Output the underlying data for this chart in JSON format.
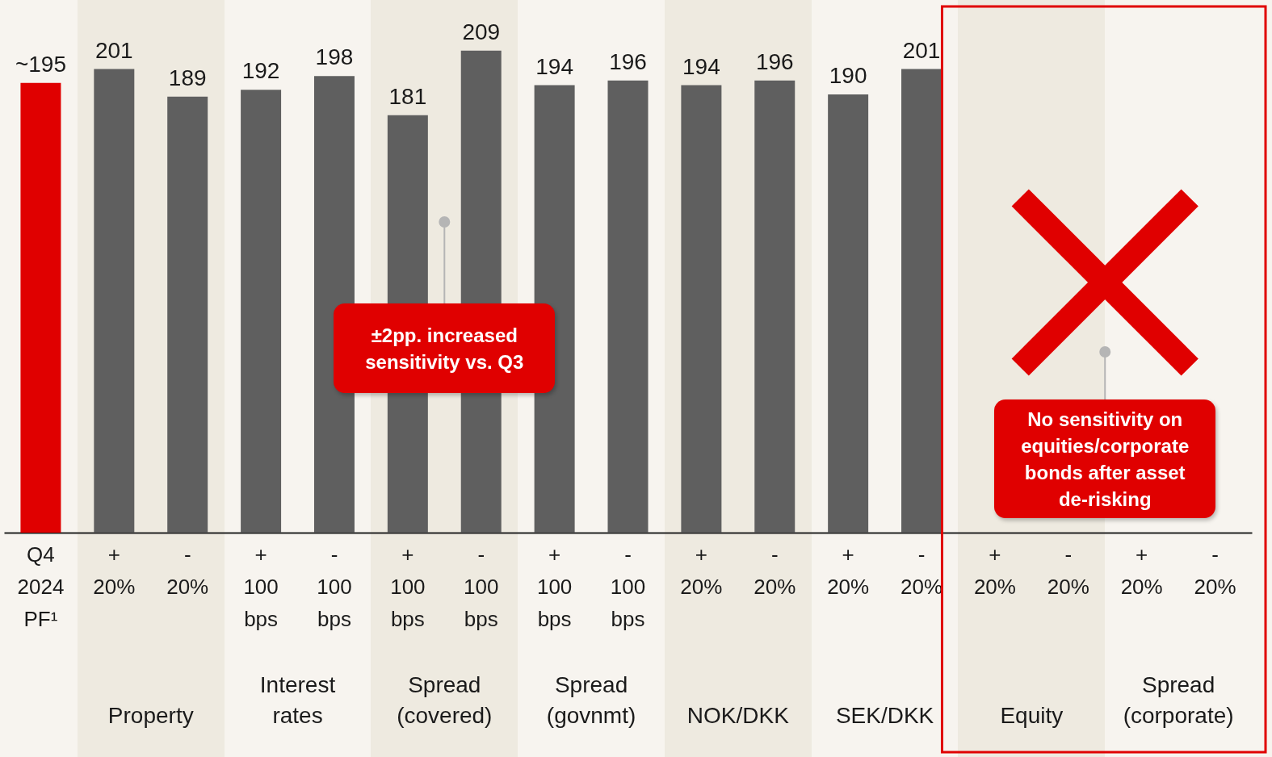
{
  "chart_data": {
    "type": "bar",
    "categories": [
      "Q4\n2024\nPF¹",
      "+\n20%",
      "-\n20%",
      "+\n100\nbps",
      "-\n100\nbps",
      "+\n100\nbps",
      "-\n100\nbps",
      "+\n100\nbps",
      "-\n100\nbps",
      "+\n20%",
      "-\n20%",
      "+\n20%",
      "-\n20%",
      "+\n20%",
      "-\n20%",
      "+\n20%",
      "-\n20%"
    ],
    "values": [
      195,
      201,
      189,
      192,
      198,
      181,
      209,
      194,
      196,
      194,
      196,
      190,
      201,
      null,
      null,
      null,
      null
    ],
    "value_labels": [
      "~195",
      "201",
      "189",
      "192",
      "198",
      "181",
      "209",
      "194",
      "196",
      "194",
      "196",
      "190",
      "201",
      null,
      null,
      null,
      null
    ],
    "colors": [
      "#e00000",
      "#5f5f5f",
      "#5f5f5f",
      "#5f5f5f",
      "#5f5f5f",
      "#5f5f5f",
      "#5f5f5f",
      "#5f5f5f",
      "#5f5f5f",
      "#5f5f5f",
      "#5f5f5f",
      "#5f5f5f",
      "#5f5f5f",
      null,
      null,
      null,
      null
    ],
    "annotations": [
      "Property",
      "Interest\nrates",
      "Spread\n(covered)",
      "Spread\n(govnmt)",
      "NOK/DKK",
      "SEK/DKK",
      "Equity",
      "Spread\n(corporate)",
      "±2pp. increased sensitivity vs. Q3",
      "No sensitivity on equities/corporate bonds after asset de-risking"
    ],
    "grid": false
  }
}
